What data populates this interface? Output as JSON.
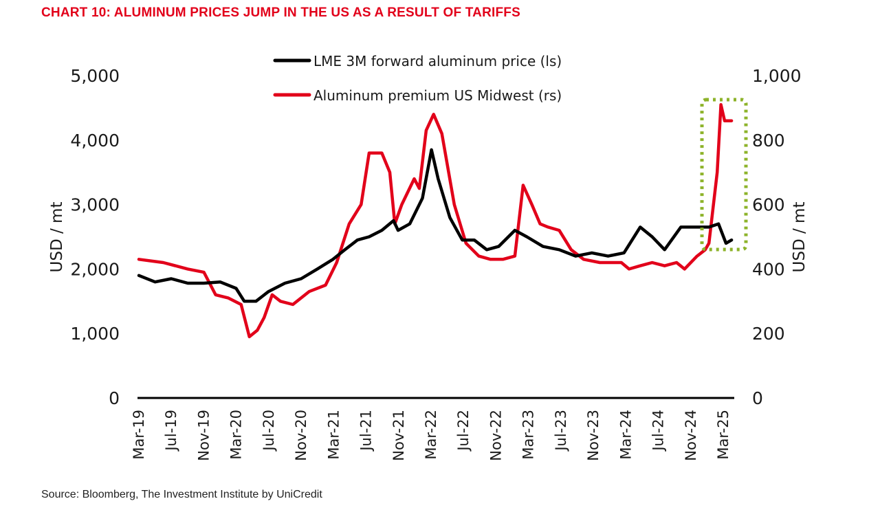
{
  "title": "CHART 10: ALUMINUM PRICES JUMP IN THE US AS A RESULT OF TARIFFS",
  "source": "Source: Bloomberg, The Investment Institute by UniCredit",
  "colors": {
    "title": "#e2001a",
    "lme": "#000000",
    "premium": "#e2001a",
    "highlight": "#8db32a"
  },
  "chart_data": {
    "type": "line",
    "legend_position": "top-center",
    "grid": false,
    "x_label": "",
    "y_left_label": "USD / mt",
    "y_right_label": "USD / mt",
    "y_left_range": [
      0,
      5000
    ],
    "y_right_range": [
      0,
      1000
    ],
    "y_left_ticks": [
      "0",
      "1,000",
      "2,000",
      "3,000",
      "4,000",
      "5,000"
    ],
    "y_right_ticks": [
      "0",
      "200",
      "400",
      "600",
      "800",
      "1,000"
    ],
    "x_ticks": [
      "Mar-19",
      "Jul-19",
      "Nov-19",
      "Mar-20",
      "Jul-20",
      "Nov-20",
      "Mar-21",
      "Jul-21",
      "Nov-21",
      "Mar-22",
      "Jul-22",
      "Nov-22",
      "Mar-23",
      "Jul-23",
      "Nov-23",
      "Mar-24",
      "Jul-24",
      "Nov-24",
      "Mar-25"
    ],
    "annotation": "Highlighted region: Dec-24 to Apr-25",
    "series": [
      {
        "name": "LME 3M forward aluminum price (ls)",
        "axis": "left",
        "x": [
          "2019-03-01",
          "2019-05-01",
          "2019-07-01",
          "2019-09-01",
          "2019-11-01",
          "2020-01-01",
          "2020-03-01",
          "2020-04-01",
          "2020-05-15",
          "2020-07-01",
          "2020-09-01",
          "2020-11-01",
          "2021-01-01",
          "2021-03-01",
          "2021-04-15",
          "2021-06-01",
          "2021-07-15",
          "2021-09-01",
          "2021-10-15",
          "2021-11-01",
          "2021-12-15",
          "2022-02-01",
          "2022-03-07",
          "2022-04-01",
          "2022-05-15",
          "2022-07-01",
          "2022-08-15",
          "2022-10-01",
          "2022-11-15",
          "2023-01-15",
          "2023-03-01",
          "2023-05-01",
          "2023-07-01",
          "2023-09-01",
          "2023-11-01",
          "2024-01-01",
          "2024-03-01",
          "2024-05-01",
          "2024-06-15",
          "2024-08-01",
          "2024-10-01",
          "2024-12-01",
          "2025-01-15",
          "2025-02-20",
          "2025-03-20",
          "2025-04-10"
        ],
        "y": [
          1900,
          1800,
          1850,
          1780,
          1780,
          1800,
          1700,
          1500,
          1500,
          1650,
          1780,
          1850,
          2000,
          2150,
          2300,
          2450,
          2500,
          2600,
          2750,
          2600,
          2700,
          3100,
          3850,
          3400,
          2800,
          2450,
          2450,
          2300,
          2350,
          2600,
          2500,
          2350,
          2300,
          2200,
          2250,
          2200,
          2250,
          2650,
          2500,
          2300,
          2650,
          2650,
          2650,
          2700,
          2400,
          2450
        ]
      },
      {
        "name": "Aluminum premium US Midwest (rs)",
        "axis": "right",
        "x": [
          "2019-03-01",
          "2019-06-01",
          "2019-09-01",
          "2019-11-01",
          "2019-12-15",
          "2020-02-01",
          "2020-03-20",
          "2020-04-20",
          "2020-05-20",
          "2020-06-15",
          "2020-07-15",
          "2020-08-15",
          "2020-10-01",
          "2020-12-01",
          "2021-02-01",
          "2021-03-15",
          "2021-05-01",
          "2021-06-15",
          "2021-07-15",
          "2021-09-01",
          "2021-10-01",
          "2021-10-20",
          "2021-11-15",
          "2022-01-01",
          "2022-01-20",
          "2022-02-15",
          "2022-03-15",
          "2022-04-15",
          "2022-06-01",
          "2022-07-15",
          "2022-09-01",
          "2022-10-15",
          "2022-12-01",
          "2023-01-15",
          "2023-02-15",
          "2023-03-20",
          "2023-04-20",
          "2023-05-20",
          "2023-07-01",
          "2023-08-15",
          "2023-10-01",
          "2023-12-01",
          "2024-01-15",
          "2024-02-20",
          "2024-03-20",
          "2024-05-01",
          "2024-06-15",
          "2024-08-01",
          "2024-09-15",
          "2024-10-15",
          "2024-12-01",
          "2025-01-01",
          "2025-01-15",
          "2025-02-15",
          "2025-03-01",
          "2025-03-15",
          "2025-04-10"
        ],
        "y": [
          430,
          420,
          400,
          390,
          320,
          310,
          290,
          190,
          210,
          250,
          320,
          300,
          290,
          330,
          350,
          420,
          540,
          600,
          760,
          760,
          700,
          540,
          600,
          680,
          650,
          830,
          880,
          820,
          600,
          480,
          440,
          430,
          430,
          440,
          660,
          600,
          540,
          530,
          520,
          460,
          430,
          420,
          420,
          420,
          400,
          410,
          420,
          410,
          420,
          400,
          440,
          460,
          480,
          700,
          910,
          860,
          860
        ]
      }
    ]
  }
}
